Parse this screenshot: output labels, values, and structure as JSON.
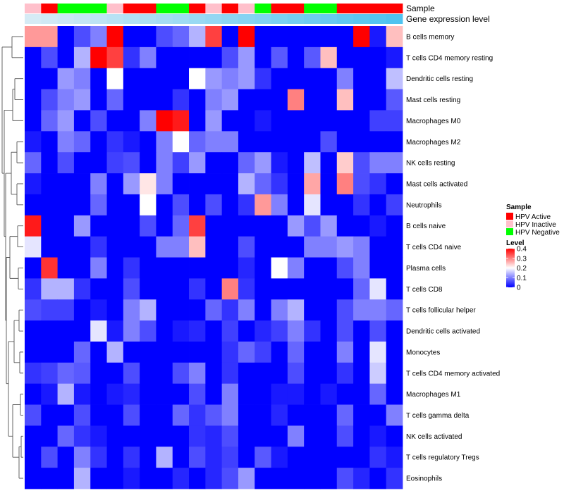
{
  "chart_data": {
    "type": "heatmap",
    "rows": [
      "B cells memory",
      "T cells CD4 memory resting",
      "Dendritic cells resting",
      "Mast cells resting",
      "Macrophages M0",
      "Macrophages M2",
      "NK cells resting",
      "Mast cells activated",
      "Neutrophils",
      "B cells naive",
      "T cells CD4 naive",
      "Plasma cells",
      "T cells CD8",
      "T cells follicular helper",
      "Dendritic cells activated",
      "Monocytes",
      "T cells CD4 memory activated",
      "Macrophages M1",
      "T cells gamma delta",
      "NK cells activated",
      "T cells regulatory  Tregs",
      "Eosinophils"
    ],
    "num_columns": 23,
    "sample_annotation": {
      "label": "Sample",
      "values": [
        "HPV Inactive",
        "HPV Active",
        "HPV Negative",
        "HPV Negative",
        "HPV Negative",
        "HPV Inactive",
        "HPV Active",
        "HPV Active",
        "HPV Negative",
        "HPV Negative",
        "HPV Active",
        "HPV Inactive",
        "HPV Active",
        "HPV Inactive",
        "HPV Negative",
        "HPV Active",
        "HPV Active",
        "HPV Negative",
        "HPV Negative",
        "HPV Active",
        "HPV Active",
        "HPV Active",
        "HPV Active"
      ]
    },
    "expression_annotation": {
      "label": "Gene expression level",
      "values": [
        0.08,
        0.1,
        0.12,
        0.14,
        0.16,
        0.18,
        0.2,
        0.22,
        0.24,
        0.26,
        0.28,
        0.3,
        0.32,
        0.34,
        0.36,
        0.38,
        0.4,
        0.42,
        0.44,
        0.46,
        0.48,
        0.5,
        0.52
      ]
    },
    "values": [
      [
        0.28,
        0.28,
        0,
        0.06,
        0.1,
        0.4,
        0,
        0,
        0.06,
        0.08,
        0.14,
        0.35,
        0,
        0.4,
        0,
        0,
        0,
        0,
        0,
        0,
        0.4,
        0.02,
        0.25
      ],
      [
        0,
        0.06,
        0,
        0.14,
        0.4,
        0.35,
        0.04,
        0.1,
        0,
        0,
        0,
        0,
        0.06,
        0.12,
        0,
        0.07,
        0,
        0.07,
        0.25,
        0,
        0,
        0,
        0.02
      ],
      [
        0,
        0,
        0.12,
        0.1,
        0,
        0.2,
        0,
        0,
        0,
        0,
        0.2,
        0.12,
        0.1,
        0.12,
        0.04,
        0,
        0,
        0,
        0,
        0.1,
        0,
        0,
        0.15
      ],
      [
        0,
        0.06,
        0.1,
        0.12,
        0,
        0.08,
        0,
        0,
        0,
        0.04,
        0,
        0.1,
        0.12,
        0,
        0,
        0,
        0.3,
        0,
        0,
        0.25,
        0,
        0,
        0.07
      ],
      [
        0,
        0.08,
        0.12,
        0,
        0.06,
        0,
        0,
        0.1,
        0.4,
        0.38,
        0,
        0.12,
        0,
        0,
        0.02,
        0,
        0,
        0,
        0,
        0,
        0,
        0.05,
        0.05
      ],
      [
        0.02,
        0,
        0.1,
        0.08,
        0,
        0.04,
        0.02,
        0,
        0.1,
        0.2,
        0.08,
        0.1,
        0.1,
        0,
        0,
        0,
        0,
        0,
        0.06,
        0,
        0,
        0,
        0
      ],
      [
        0.08,
        0,
        0.06,
        0,
        0,
        0.05,
        0.06,
        0,
        0.1,
        0.05,
        0.12,
        0,
        0,
        0.08,
        0.12,
        0.02,
        0,
        0.15,
        0,
        0.24,
        0.06,
        0.1,
        0.1
      ],
      [
        0.02,
        0,
        0,
        0,
        0.1,
        0,
        0.12,
        0.22,
        0.1,
        0,
        0,
        0,
        0,
        0.14,
        0.08,
        0.04,
        0,
        0.27,
        0,
        0.3,
        0.06,
        0.04,
        0
      ],
      [
        0,
        0,
        0,
        0,
        0.08,
        0,
        0,
        0.2,
        0,
        0.06,
        0,
        0.06,
        0,
        0.04,
        0.28,
        0.1,
        0,
        0.18,
        0,
        0,
        0.04,
        0,
        0.05
      ],
      [
        0.38,
        0,
        0,
        0.12,
        0,
        0,
        0,
        0.06,
        0,
        0.08,
        0.35,
        0,
        0,
        0,
        0,
        0,
        0.12,
        0.06,
        0.12,
        0,
        0,
        0.02,
        0
      ],
      [
        0.18,
        0,
        0,
        0,
        0.04,
        0,
        0,
        0,
        0.1,
        0.1,
        0.25,
        0,
        0,
        0.06,
        0,
        0,
        0,
        0.1,
        0.1,
        0.12,
        0.1,
        0,
        0
      ],
      [
        0,
        0.36,
        0,
        0,
        0.1,
        0,
        0.04,
        0,
        0,
        0,
        0,
        0,
        0,
        0.03,
        0,
        0.2,
        0.1,
        0,
        0,
        0.06,
        0.1,
        0,
        0
      ],
      [
        0.04,
        0.14,
        0.14,
        0.04,
        0,
        0,
        0.06,
        0,
        0,
        0,
        0.04,
        0,
        0.3,
        0.04,
        0,
        0,
        0,
        0,
        0,
        0,
        0.08,
        0.18,
        0
      ],
      [
        0.06,
        0.05,
        0.05,
        0,
        0.02,
        0,
        0.1,
        0.14,
        0,
        0,
        0,
        0.08,
        0.04,
        0.1,
        0,
        0.1,
        0.14,
        0,
        0,
        0.06,
        0.1,
        0.1,
        0.08
      ],
      [
        0,
        0,
        0,
        0,
        0.18,
        0.02,
        0.1,
        0.06,
        0,
        0.02,
        0.03,
        0,
        0.05,
        0,
        0.03,
        0.05,
        0.1,
        0.04,
        0,
        0.06,
        0,
        0.06,
        0
      ],
      [
        0,
        0,
        0,
        0.08,
        0,
        0.14,
        0,
        0,
        0,
        0,
        0,
        0,
        0.04,
        0.08,
        0.05,
        0,
        0.08,
        0,
        0,
        0.1,
        0,
        0.18,
        0
      ],
      [
        0.04,
        0.05,
        0.08,
        0.07,
        0,
        0,
        0.06,
        0,
        0,
        0.06,
        0.1,
        0,
        0.04,
        0,
        0,
        0,
        0.06,
        0,
        0,
        0.04,
        0,
        0.16,
        0
      ],
      [
        0,
        0.02,
        0.14,
        0.02,
        0,
        0.02,
        0.03,
        0,
        0,
        0,
        0.06,
        0,
        0.1,
        0,
        0,
        0.02,
        0.02,
        0,
        0.02,
        0,
        0,
        0.08,
        0
      ],
      [
        0.06,
        0,
        0,
        0.06,
        0,
        0,
        0.06,
        0,
        0,
        0.08,
        0.04,
        0.07,
        0.1,
        0,
        0,
        0.03,
        0,
        0,
        0,
        0.08,
        0,
        0,
        0.1
      ],
      [
        0,
        0,
        0.08,
        0.04,
        0.02,
        0,
        0,
        0,
        0,
        0,
        0.04,
        0.03,
        0.06,
        0,
        0,
        0,
        0.1,
        0,
        0,
        0.06,
        0,
        0.02,
        0
      ],
      [
        0,
        0.06,
        0,
        0.1,
        0.04,
        0,
        0.04,
        0,
        0.14,
        0,
        0.06,
        0.03,
        0.05,
        0,
        0.07,
        0.02,
        0,
        0,
        0,
        0,
        0,
        0.04,
        0.02
      ],
      [
        0,
        0,
        0,
        0.14,
        0,
        0,
        0.02,
        0,
        0,
        0.03,
        0,
        0.03,
        0.06,
        0.12,
        0,
        0,
        0,
        0,
        0,
        0.06,
        0.03,
        0,
        0.04
      ]
    ],
    "legend": {
      "sample_title": "Sample",
      "sample_items": [
        {
          "label": "HPV Active",
          "color": "#ff0000"
        },
        {
          "label": "HPV Inactive",
          "color": "#ffc0cb"
        },
        {
          "label": "HPV Negative",
          "color": "#00ff00"
        }
      ],
      "level_title": "Level",
      "level_ticks": [
        0.4,
        0.3,
        0.2,
        0.1,
        0
      ],
      "level_max": 0.4
    },
    "colors": {
      "low": "#0000ff",
      "mid": "#ffffff",
      "high": "#ff0000",
      "expr_low": "#d6ebf5",
      "expr_high": "#4fc3f0"
    }
  }
}
